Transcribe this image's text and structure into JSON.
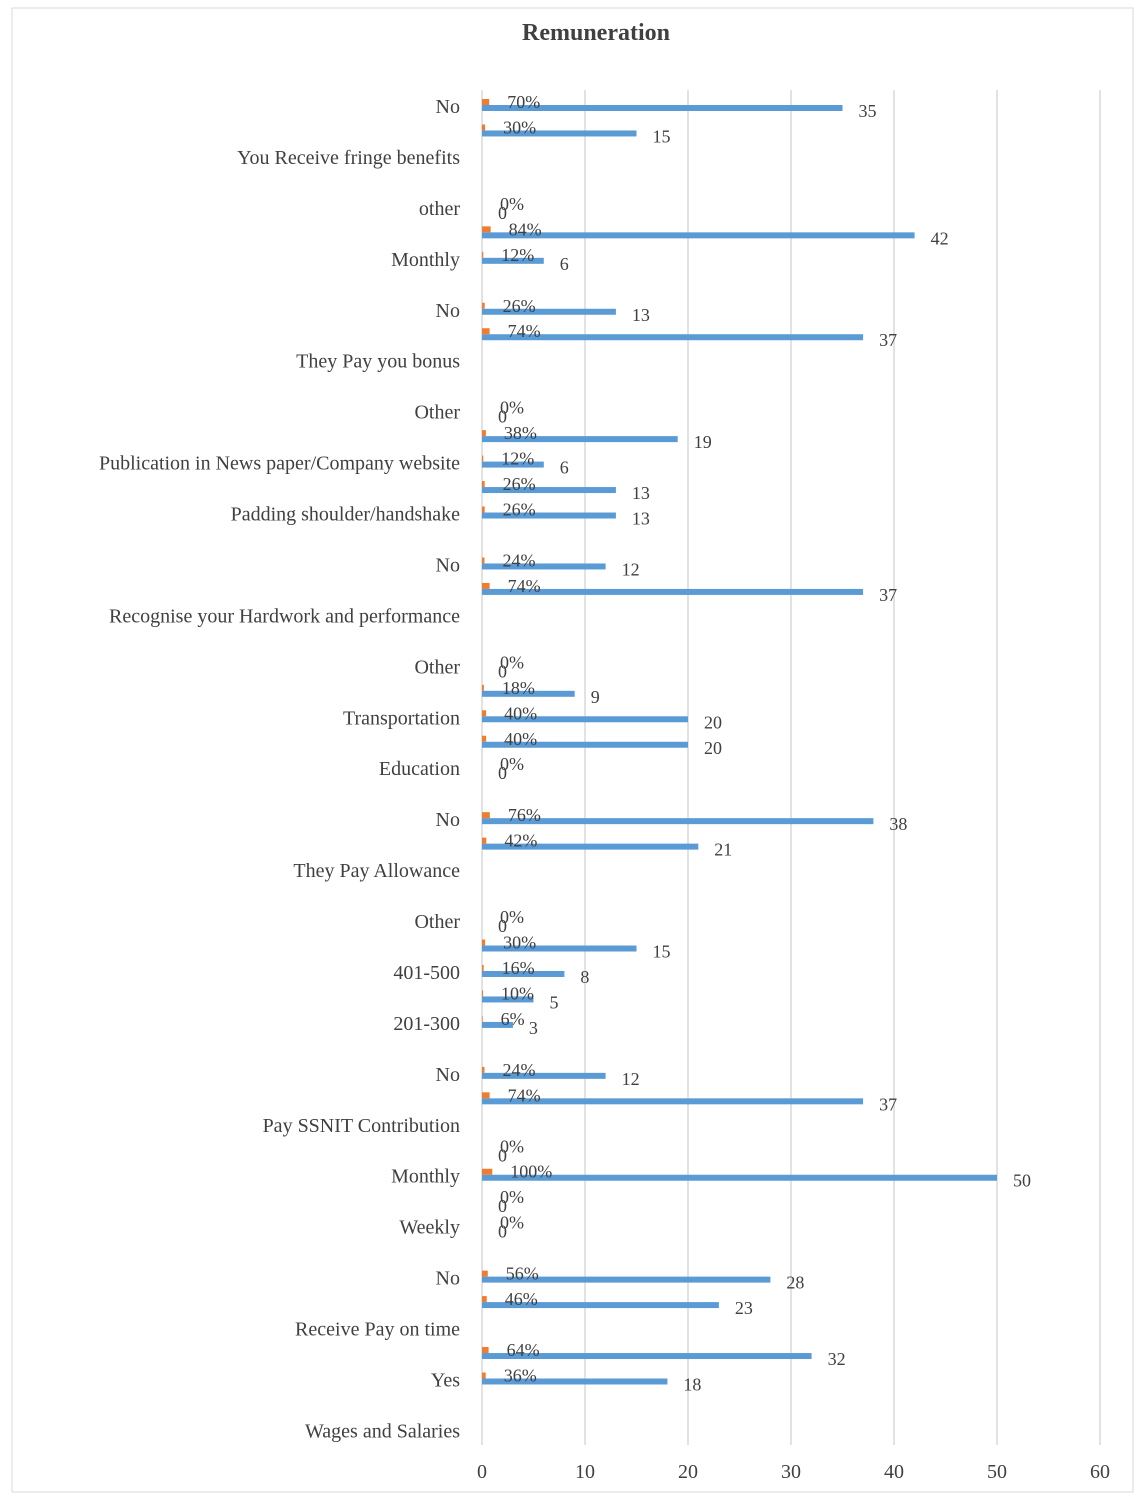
{
  "chart_data": {
    "type": "hbar",
    "title": "Remuneration",
    "categories": [
      "No",
      null,
      "You Receive fringe benefits",
      null,
      "other",
      null,
      "Monthly",
      null,
      "No",
      null,
      "They Pay you bonus",
      null,
      "Other",
      null,
      "Publication in News paper/Company website",
      null,
      "Padding shoulder/handshake",
      null,
      "No",
      null,
      "Recognise your Hardwork and performance",
      null,
      "Other",
      null,
      "Transportation",
      null,
      "Education",
      null,
      "No",
      null,
      "They Pay Allowance",
      null,
      "Other",
      null,
      "401-500",
      null,
      "201-300",
      null,
      "No",
      null,
      "Pay SSNIT Contribution",
      null,
      "Monthly",
      null,
      "Weekly",
      null,
      "No",
      null,
      "Receive Pay on time",
      null,
      "Yes",
      null,
      "Wages and Salaries"
    ],
    "series": [
      {
        "color": "#5b9bd5",
        "values": [
          35,
          15,
          null,
          null,
          0,
          42,
          6,
          null,
          13,
          37,
          null,
          null,
          0,
          19,
          6,
          13,
          13,
          null,
          12,
          37,
          null,
          null,
          0,
          9,
          20,
          20,
          0,
          null,
          38,
          21,
          null,
          null,
          0,
          15,
          8,
          5,
          3,
          null,
          12,
          37,
          null,
          0,
          50,
          0,
          0,
          null,
          28,
          23,
          null,
          32,
          18,
          null,
          null
        ]
      },
      {
        "color": "#ed7d31",
        "values": [
          0.7,
          0.3,
          null,
          null,
          0,
          0.84,
          0.12,
          null,
          0.26,
          0.74,
          null,
          null,
          0,
          0.38,
          0.12,
          0.26,
          0.26,
          null,
          0.24,
          0.74,
          null,
          null,
          0,
          0.18,
          0.4,
          0.4,
          0,
          null,
          0.76,
          0.42,
          null,
          null,
          0,
          0.3,
          0.16,
          0.1,
          0.06,
          null,
          0.24,
          0.74,
          null,
          0,
          1,
          0,
          0,
          null,
          0.56,
          0.46,
          null,
          0.64,
          0.36,
          null,
          null
        ],
        "value_labels": [
          "70%",
          "30%",
          null,
          null,
          "0%",
          "84%",
          "12%",
          null,
          "26%",
          "74%",
          null,
          null,
          "0%",
          "38%",
          "12%",
          "26%",
          "26%",
          null,
          "24%",
          "74%",
          null,
          null,
          "0%",
          "18%",
          "40%",
          "40%",
          "0%",
          null,
          "76%",
          "42%",
          null,
          null,
          "0%",
          "30%",
          "16%",
          "10%",
          "6%",
          null,
          "24%",
          "74%",
          null,
          "0%",
          "100%",
          "0%",
          "0%",
          null,
          "56%",
          "46%",
          null,
          "64%",
          "36%",
          null,
          null
        ]
      }
    ],
    "xlim": [
      0,
      60
    ],
    "xticks": [
      0,
      10,
      20,
      30,
      40,
      50,
      60
    ],
    "grid": true
  }
}
